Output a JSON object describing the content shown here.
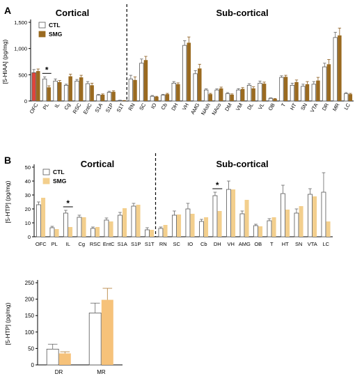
{
  "chart_data": [
    {
      "panel": "A",
      "type": "bar",
      "region_labels": [
        "Cortical",
        "Sub-cortical"
      ],
      "ylabel": "[5-HIAA] (pg/mg)",
      "ylim": [
        0,
        1500
      ],
      "yticks": [
        "0",
        "500",
        "1,000",
        "1,500"
      ],
      "categories": [
        "OFC",
        "PL",
        "IL",
        "Cg",
        "RSC",
        "EntC",
        "S1A",
        "S1P",
        "S1T",
        "RN",
        "SC",
        "IO",
        "Cb",
        "DH",
        "VH",
        "AMG",
        "NAsh",
        "NAco",
        "DM",
        "VM",
        "DL",
        "VL",
        "OB",
        "T",
        "HT",
        "SN",
        "VTA",
        "DR",
        "MR",
        "LC"
      ],
      "divider_after": 8,
      "series": [
        {
          "name": "CTL",
          "color": "#ffffff",
          "values": [
            540,
            420,
            380,
            300,
            380,
            330,
            110,
            165,
            10,
            420,
            720,
            90,
            110,
            340,
            1060,
            520,
            210,
            210,
            140,
            210,
            300,
            340,
            50,
            450,
            300,
            280,
            320,
            650,
            1210,
            140
          ],
          "errors": [
            60,
            40,
            40,
            20,
            30,
            40,
            15,
            20,
            5,
            70,
            80,
            15,
            15,
            30,
            90,
            60,
            20,
            20,
            20,
            25,
            30,
            40,
            10,
            30,
            40,
            40,
            50,
            70,
            100,
            20
          ]
        },
        {
          "name": "SMG",
          "color": "#9a6a20",
          "values": [
            570,
            260,
            360,
            470,
            450,
            300,
            120,
            175,
            5,
            400,
            780,
            80,
            130,
            320,
            1110,
            620,
            130,
            240,
            120,
            230,
            240,
            330,
            40,
            460,
            360,
            320,
            390,
            700,
            1250,
            130
          ],
          "errors": [
            40,
            30,
            30,
            40,
            40,
            40,
            15,
            20,
            5,
            60,
            70,
            10,
            15,
            25,
            110,
            80,
            15,
            25,
            15,
            25,
            30,
            30,
            8,
            30,
            40,
            50,
            60,
            90,
            140,
            15
          ]
        }
      ],
      "highlight": {
        "index": 0,
        "series": 0,
        "color": "#e0443a"
      },
      "significance": [
        {
          "index": 1,
          "mark": "*"
        }
      ]
    },
    {
      "panel": "B",
      "type": "bar",
      "region_labels": [
        "Cortical",
        "Sub-cortical"
      ],
      "ylabel": "[5-HTP] (pg/mg)",
      "ylim": [
        0,
        50
      ],
      "yticks": [
        "0",
        "10",
        "20",
        "30",
        "40",
        "50"
      ],
      "categories": [
        "OFC",
        "PL",
        "IL",
        "Cg",
        "RSC",
        "EntC",
        "S1A",
        "S1P",
        "S1T",
        "RN",
        "SC",
        "IO",
        "Cb",
        "DH",
        "VH",
        "AMG",
        "OB",
        "T",
        "HT",
        "SN",
        "VTA",
        "LC"
      ],
      "divider_after": 8,
      "series": [
        {
          "name": "CTL",
          "color": "#ffffff",
          "values": [
            23,
            6.5,
            17,
            14,
            6,
            12,
            15.5,
            22,
            5,
            6,
            15.5,
            20,
            11,
            29.5,
            34,
            16.5,
            8,
            11.5,
            31,
            17,
            30.5,
            32
          ],
          "errors": [
            2,
            1,
            2,
            1.5,
            1,
            1.5,
            2,
            2,
            1.5,
            1,
            3,
            4,
            1.5,
            2.5,
            6,
            2,
            1,
            1.5,
            6,
            3,
            4,
            14
          ]
        },
        {
          "name": "SMG",
          "color": "#f3cf8d",
          "values": [
            28,
            5.5,
            7,
            14,
            7,
            11,
            20.5,
            23,
            5,
            8.5,
            16,
            16.5,
            14,
            18.5,
            34,
            26.5,
            7.5,
            14,
            19.5,
            22,
            29,
            11
          ]
        }
      ],
      "significance": [
        {
          "index": 2,
          "mark": "*"
        },
        {
          "index": 13,
          "mark": "*"
        }
      ]
    },
    {
      "panel": "B-inset",
      "type": "bar",
      "ylabel": "[5-HTP] (pg/mg)",
      "ylim": [
        0,
        250
      ],
      "yticks": [
        "0",
        "50",
        "100",
        "150",
        "200",
        "250"
      ],
      "categories": [
        "DR",
        "MR"
      ],
      "series": [
        {
          "name": "CTL",
          "color": "#ffffff",
          "values": [
            48,
            158
          ],
          "errors": [
            15,
            30
          ]
        },
        {
          "name": "SMG",
          "color": "#f6c27a",
          "values": [
            35,
            198
          ],
          "errors": [
            5,
            35
          ]
        }
      ]
    }
  ]
}
